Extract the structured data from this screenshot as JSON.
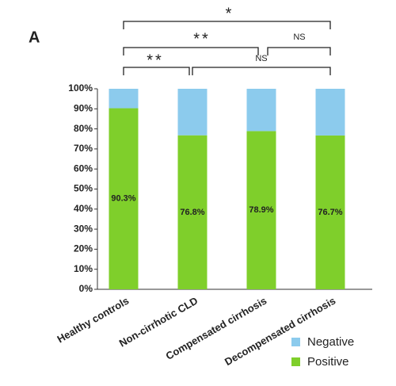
{
  "chart_data": {
    "type": "stacked_bar",
    "panel_label": "A",
    "categories": [
      "Healthy controls",
      "Non-cirrhotic CLD",
      "Compensated cirrhosis",
      "Decompensated cirrhosis"
    ],
    "series": [
      {
        "name": "Positive",
        "color": "#7fcf2b",
        "values": [
          90.3,
          76.8,
          78.9,
          76.7
        ],
        "value_labels": [
          "90.3%",
          "76.8%",
          "78.9%",
          "76.7%"
        ]
      },
      {
        "name": "Negative",
        "color": "#8ccbed",
        "values": [
          9.7,
          23.2,
          21.1,
          23.3
        ]
      }
    ],
    "ylim": [
      0,
      100
    ],
    "yticks": [
      {
        "value": 0,
        "label": "0%"
      },
      {
        "value": 10,
        "label": "10%"
      },
      {
        "value": 20,
        "label": "20%"
      },
      {
        "value": 30,
        "label": "30%"
      },
      {
        "value": 40,
        "label": "40%"
      },
      {
        "value": 50,
        "label": "50%"
      },
      {
        "value": 60,
        "label": "60%"
      },
      {
        "value": 70,
        "label": "70%"
      },
      {
        "value": 80,
        "label": "80%"
      },
      {
        "value": 90,
        "label": "90%"
      },
      {
        "value": 100,
        "label": "100%"
      }
    ],
    "annotations": [
      "*",
      "**",
      "NS",
      "**",
      "NS"
    ]
  }
}
